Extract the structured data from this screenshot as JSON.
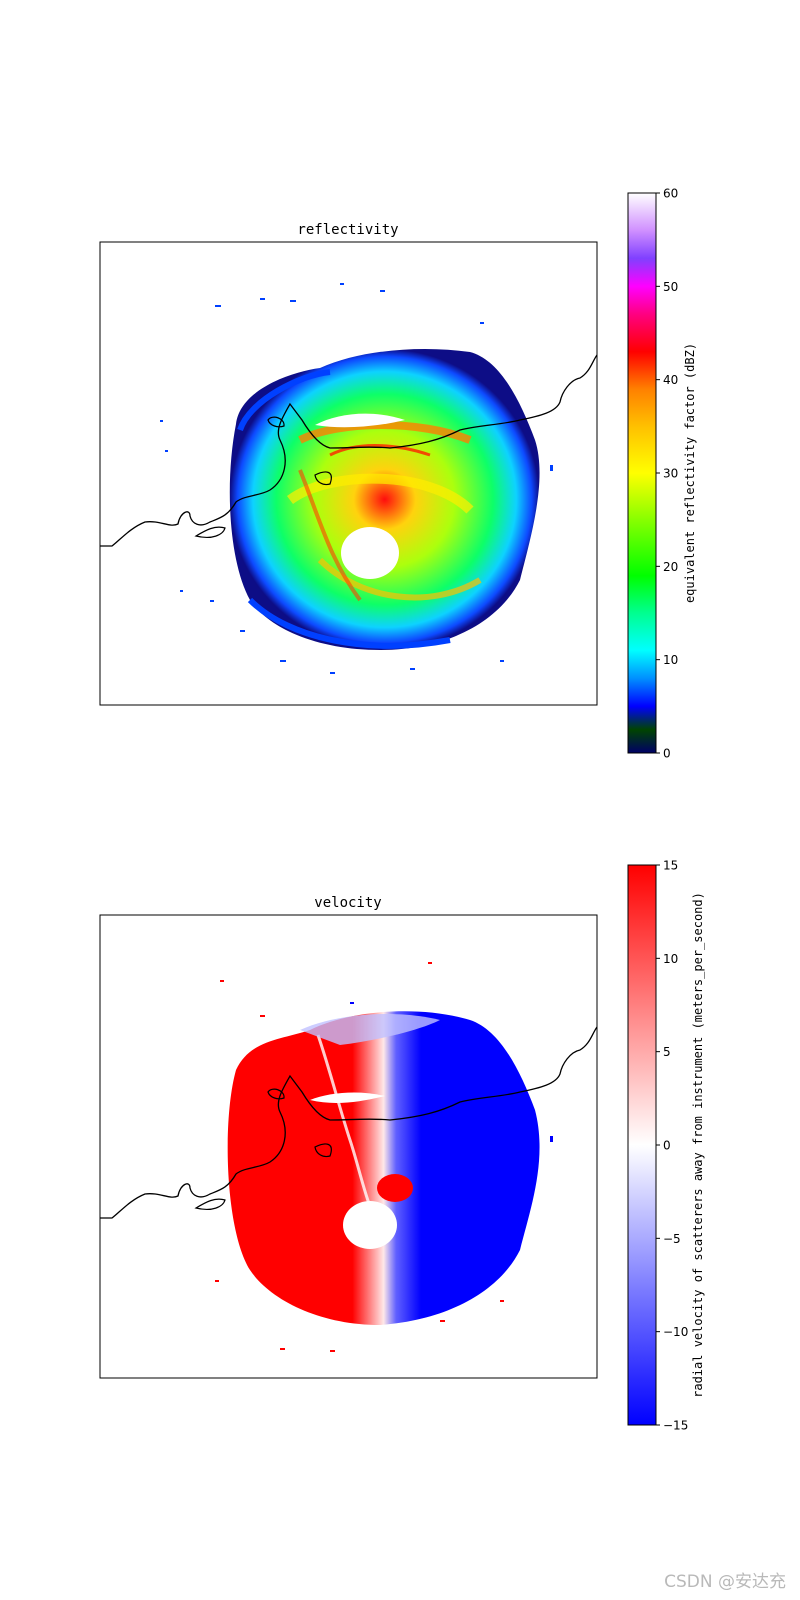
{
  "chart_data": [
    {
      "type": "heatmap",
      "title": "reflectivity",
      "colorbar": {
        "label": "equivalent reflectivity factor (dBZ)",
        "range": [
          0,
          60
        ],
        "ticks": [
          0,
          10,
          20,
          30,
          40,
          50,
          60
        ],
        "tick_labels": [
          "0",
          "10",
          "20",
          "30",
          "40",
          "50",
          "60"
        ],
        "colormap": [
          {
            "value": 0,
            "color": "#000066"
          },
          {
            "value": 2.5,
            "color": "#004400"
          },
          {
            "value": 5,
            "color": "#0000ff"
          },
          {
            "value": 8,
            "color": "#0090ff"
          },
          {
            "value": 11,
            "color": "#00ffff"
          },
          {
            "value": 15,
            "color": "#00ff90"
          },
          {
            "value": 19,
            "color": "#00ff00"
          },
          {
            "value": 25,
            "color": "#88ff00"
          },
          {
            "value": 30,
            "color": "#ffff00"
          },
          {
            "value": 35,
            "color": "#ffc000"
          },
          {
            "value": 39,
            "color": "#ff8000"
          },
          {
            "value": 43,
            "color": "#ff0000"
          },
          {
            "value": 47,
            "color": "#ff0080"
          },
          {
            "value": 50,
            "color": "#ff00ff"
          },
          {
            "value": 53,
            "color": "#8040ff"
          },
          {
            "value": 56,
            "color": "#d090ff"
          },
          {
            "value": 60,
            "color": "#ffffff"
          }
        ]
      },
      "grid": false,
      "coastline": true
    },
    {
      "type": "heatmap",
      "title": "velocity",
      "colorbar": {
        "label": "radial velocity of scatterers away from instrument (meters_per_second)",
        "range": [
          -15,
          15
        ],
        "ticks": [
          -15,
          -10,
          -5,
          0,
          5,
          10,
          15
        ],
        "tick_labels": [
          "−15",
          "−10",
          "−5",
          "0",
          "5",
          "10",
          "15"
        ],
        "colormap": [
          {
            "value": -15,
            "color": "#0000ff"
          },
          {
            "value": 0,
            "color": "#ffffff"
          },
          {
            "value": 15,
            "color": "#ff0000"
          }
        ]
      },
      "grid": false,
      "coastline": true
    }
  ],
  "watermark": "CSDN @安达充"
}
